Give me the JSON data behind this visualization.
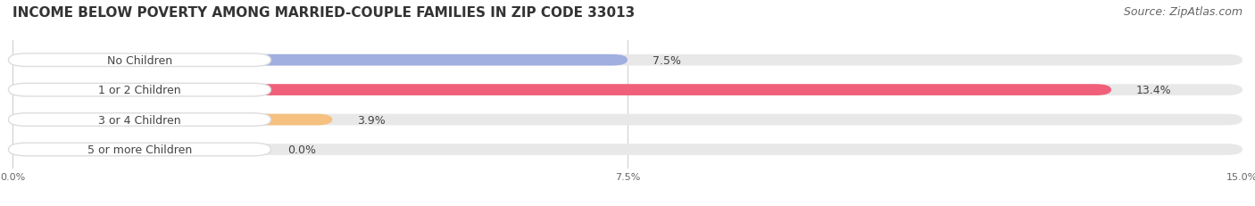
{
  "title": "INCOME BELOW POVERTY AMONG MARRIED-COUPLE FAMILIES IN ZIP CODE 33013",
  "source": "Source: ZipAtlas.com",
  "categories": [
    "No Children",
    "1 or 2 Children",
    "3 or 4 Children",
    "5 or more Children"
  ],
  "values": [
    7.5,
    13.4,
    3.9,
    0.0
  ],
  "bar_colors": [
    "#a0aee0",
    "#f0607a",
    "#f5c080",
    "#f5a0a0"
  ],
  "xlim": [
    0,
    15.0
  ],
  "xtick_labels": [
    "0.0%",
    "7.5%",
    "15.0%"
  ],
  "background_color": "#ffffff",
  "bar_bg_color": "#e8e8e8",
  "label_pill_color": "#ffffff",
  "label_text_color": "#444444",
  "value_text_color": "#444444",
  "title_fontsize": 11,
  "source_fontsize": 9,
  "bar_height": 0.38,
  "label_fontsize": 9,
  "value_fontsize": 9
}
